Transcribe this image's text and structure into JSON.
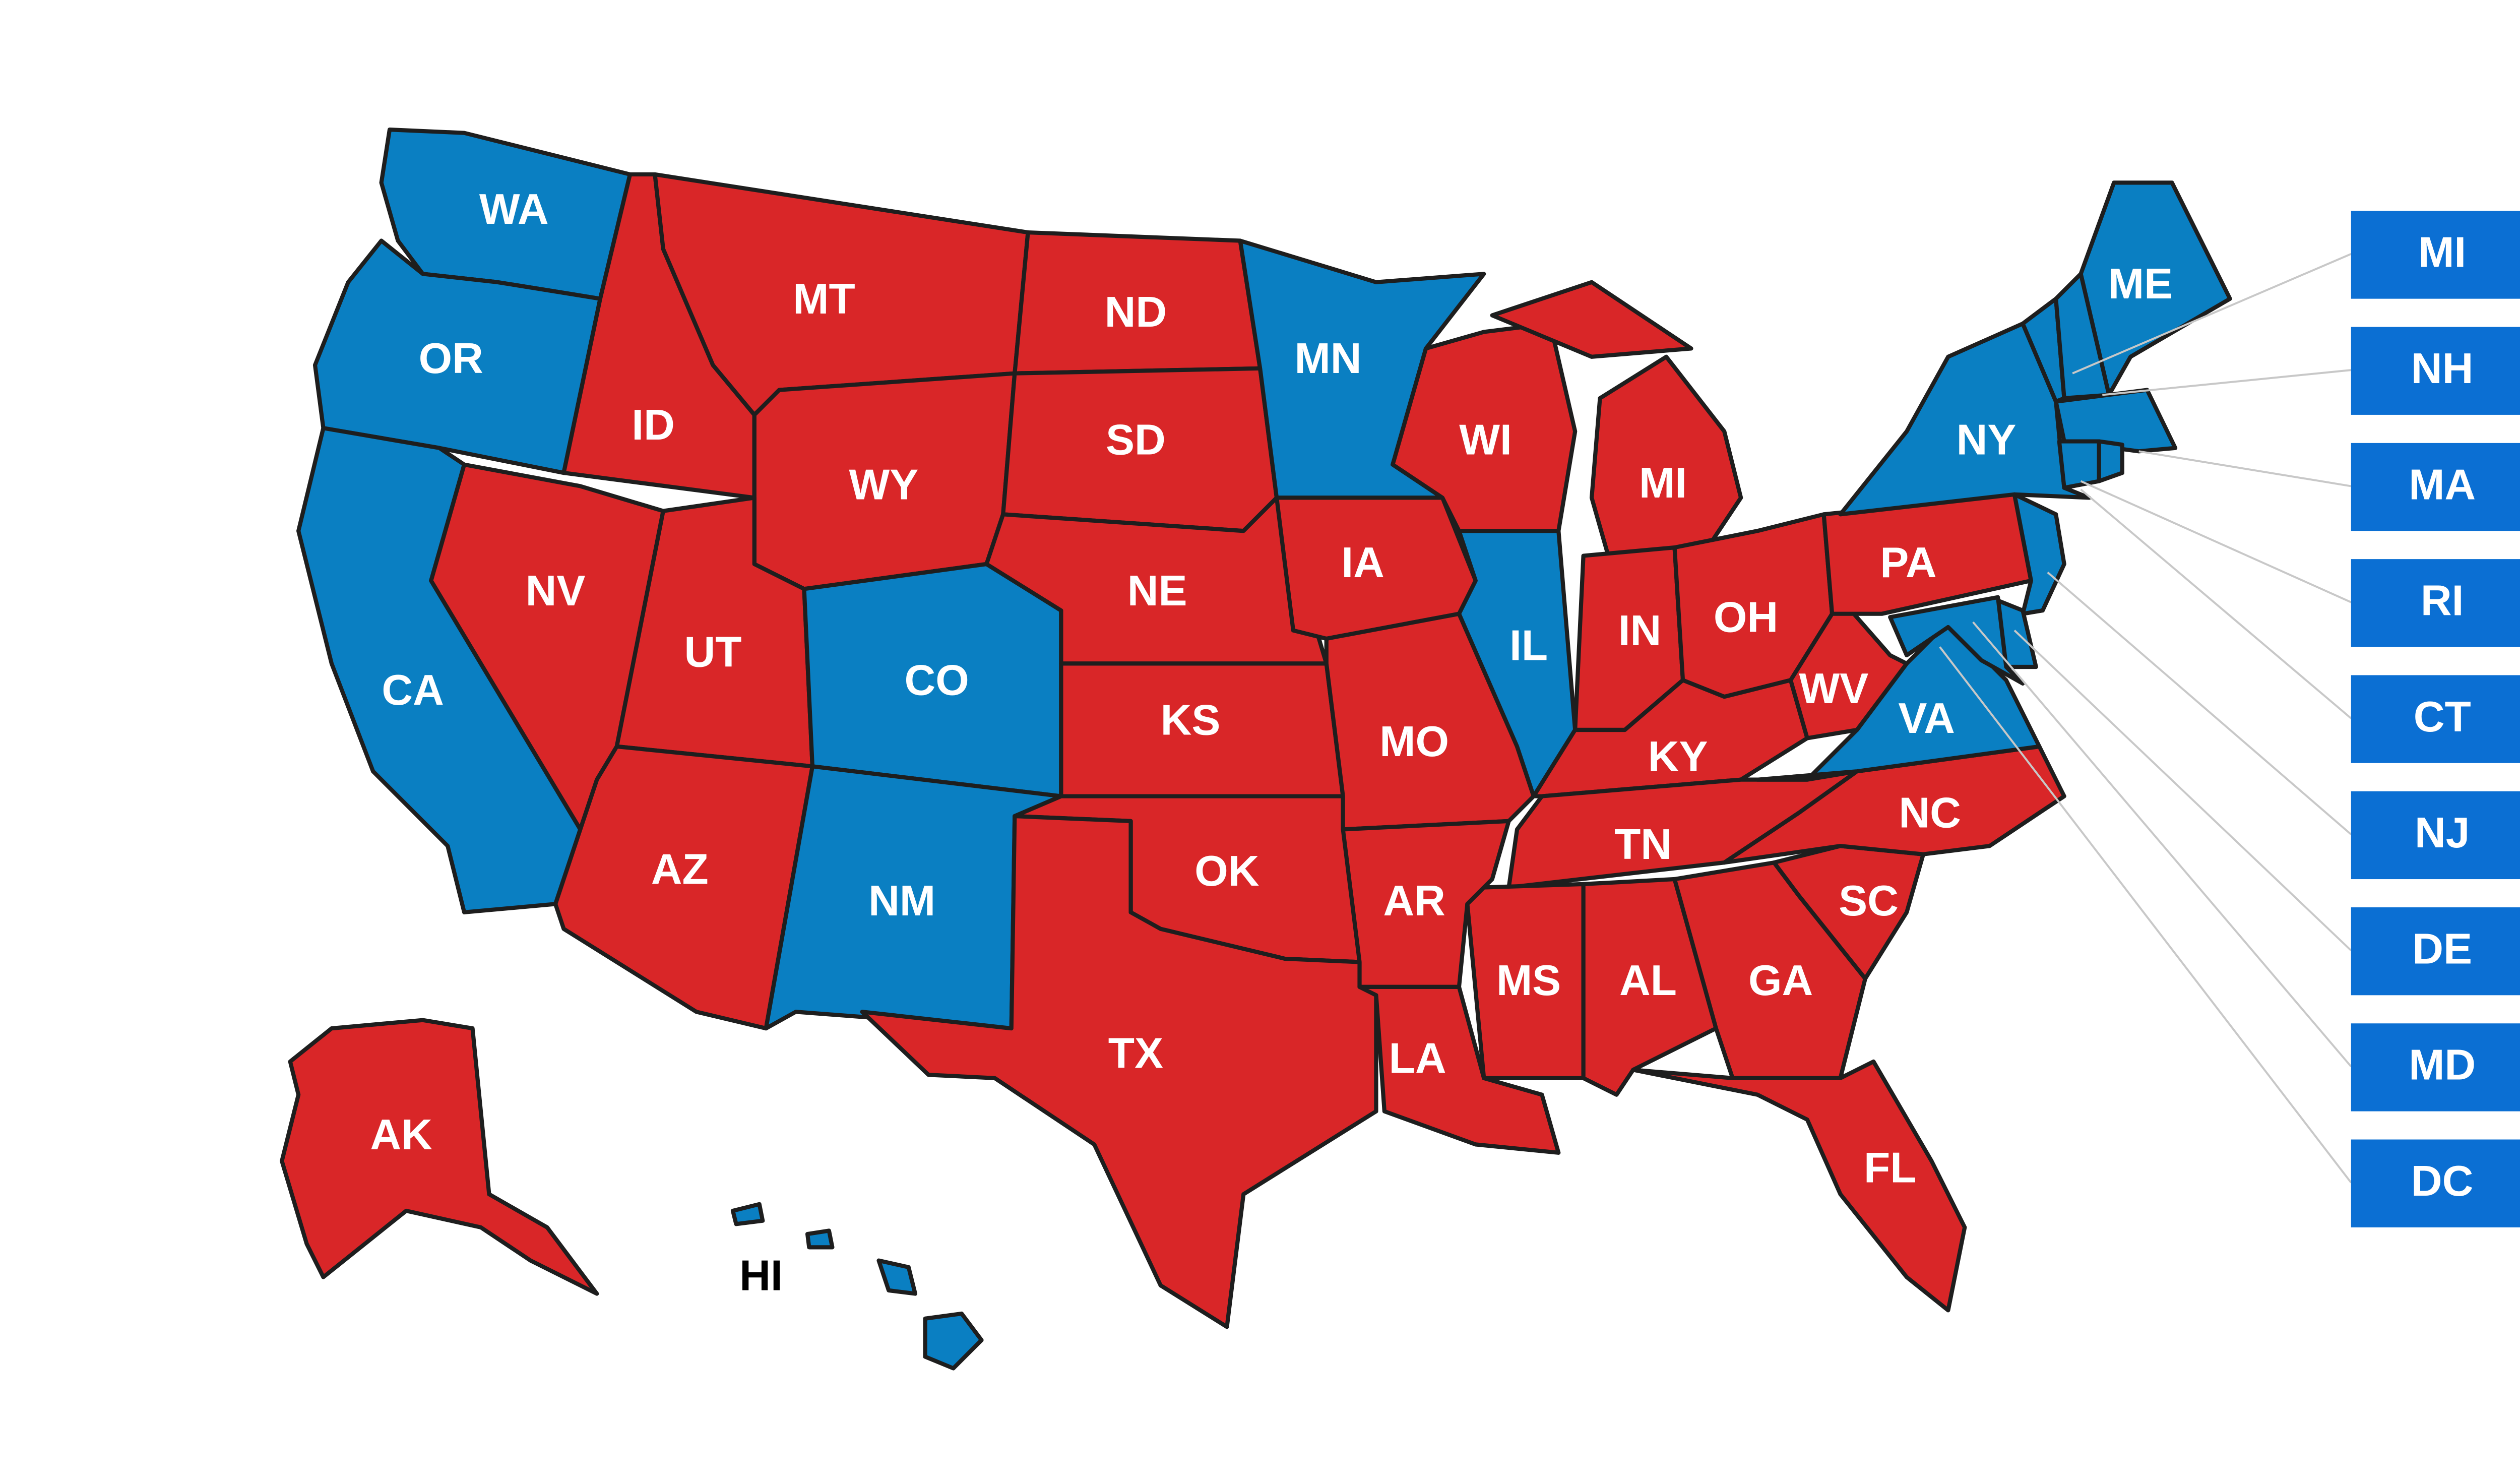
{
  "states": [
    {
      "label": "WA",
      "color": "#0a7fc2"
    },
    {
      "label": "OR",
      "color": "#0a7fc2"
    },
    {
      "label": "CA",
      "color": "#0a7fc2"
    },
    {
      "label": "NV",
      "color": "#d92628"
    },
    {
      "label": "ID",
      "color": "#d92628"
    },
    {
      "label": "MT",
      "color": "#d92628"
    },
    {
      "label": "WY",
      "color": "#d92628"
    },
    {
      "label": "UT",
      "color": "#d92628"
    },
    {
      "label": "AZ",
      "color": "#d92628"
    },
    {
      "label": "CO",
      "color": "#0a7fc2"
    },
    {
      "label": "NM",
      "color": "#0a7fc2"
    },
    {
      "label": "ND",
      "color": "#d92628"
    },
    {
      "label": "SD",
      "color": "#d92628"
    },
    {
      "label": "NE",
      "color": "#d92628"
    },
    {
      "label": "KS",
      "color": "#d92628"
    },
    {
      "label": "OK",
      "color": "#d92628"
    },
    {
      "label": "TX",
      "color": "#d92628"
    },
    {
      "label": "MN",
      "color": "#0a7fc2"
    },
    {
      "label": "IA",
      "color": "#d92628"
    },
    {
      "label": "MO",
      "color": "#d92628"
    },
    {
      "label": "AR",
      "color": "#d92628"
    },
    {
      "label": "LA",
      "color": "#d92628"
    },
    {
      "label": "WI",
      "color": "#d92628"
    },
    {
      "label": "IL",
      "color": "#0a7fc2"
    },
    {
      "label": "MI",
      "color": "#d92628"
    },
    {
      "label": "IN",
      "color": "#d92628"
    },
    {
      "label": "OH",
      "color": "#d92628"
    },
    {
      "label": "KY",
      "color": "#d92628"
    },
    {
      "label": "TN",
      "color": "#d92628"
    },
    {
      "label": "MS",
      "color": "#d92628"
    },
    {
      "label": "AL",
      "color": "#d92628"
    },
    {
      "label": "GA",
      "color": "#d92628"
    },
    {
      "label": "FL",
      "color": "#d92628"
    },
    {
      "label": "SC",
      "color": "#d92628"
    },
    {
      "label": "NC",
      "color": "#d92628"
    },
    {
      "label": "VA",
      "color": "#0a7fc2"
    },
    {
      "label": "WV",
      "color": "#d92628"
    },
    {
      "label": "PA",
      "color": "#d92628"
    },
    {
      "label": "NY",
      "color": "#0a7fc2"
    },
    {
      "label": "ME",
      "color": "#0a7fc2"
    },
    {
      "label": "AK",
      "color": "#d92628"
    },
    {
      "label": "HI",
      "color": "#0a7fc2"
    }
  ],
  "callouts": [
    {
      "label": "MI"
    },
    {
      "label": "NH"
    },
    {
      "label": "MA"
    },
    {
      "label": "RI"
    },
    {
      "label": "CT"
    },
    {
      "label": "NJ"
    },
    {
      "label": "DE"
    },
    {
      "label": "MD"
    },
    {
      "label": "DC"
    }
  ],
  "callout_color": "#0b6fd3"
}
